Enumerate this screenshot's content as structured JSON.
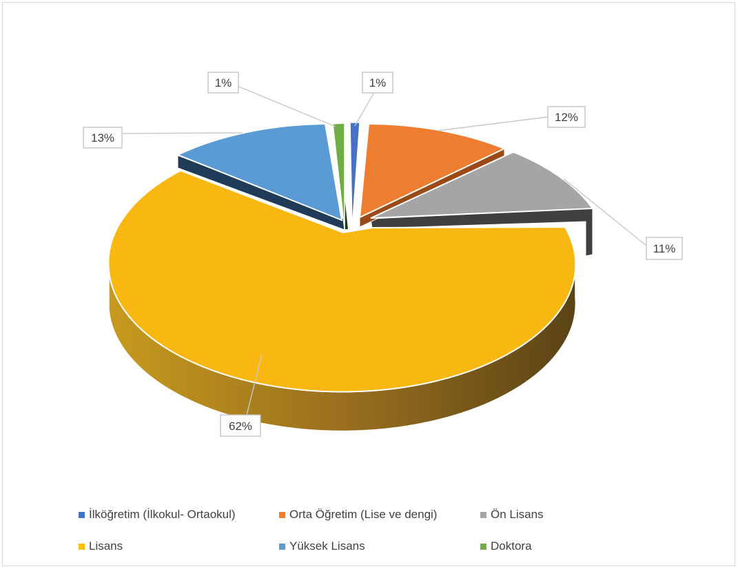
{
  "chart_data": {
    "type": "pie",
    "title": "",
    "three_d": true,
    "legend_position": "bottom",
    "categories": [
      "İlköğretim (İlkokul- Ortaokul)",
      "Orta Öğretim (Lise ve dengi)",
      "Ön Lisans",
      "Lisans",
      "Yüksek Lisans",
      "Doktora"
    ],
    "values": [
      1,
      12,
      11,
      62,
      13,
      1
    ],
    "data_labels": [
      "1%",
      "12%",
      "11%",
      "62%",
      "13%",
      "1%"
    ],
    "colors": [
      "#4472c4",
      "#ed7d31",
      "#a5a5a5",
      "#ffc000",
      "#5b9bd5",
      "#70ad47"
    ]
  }
}
